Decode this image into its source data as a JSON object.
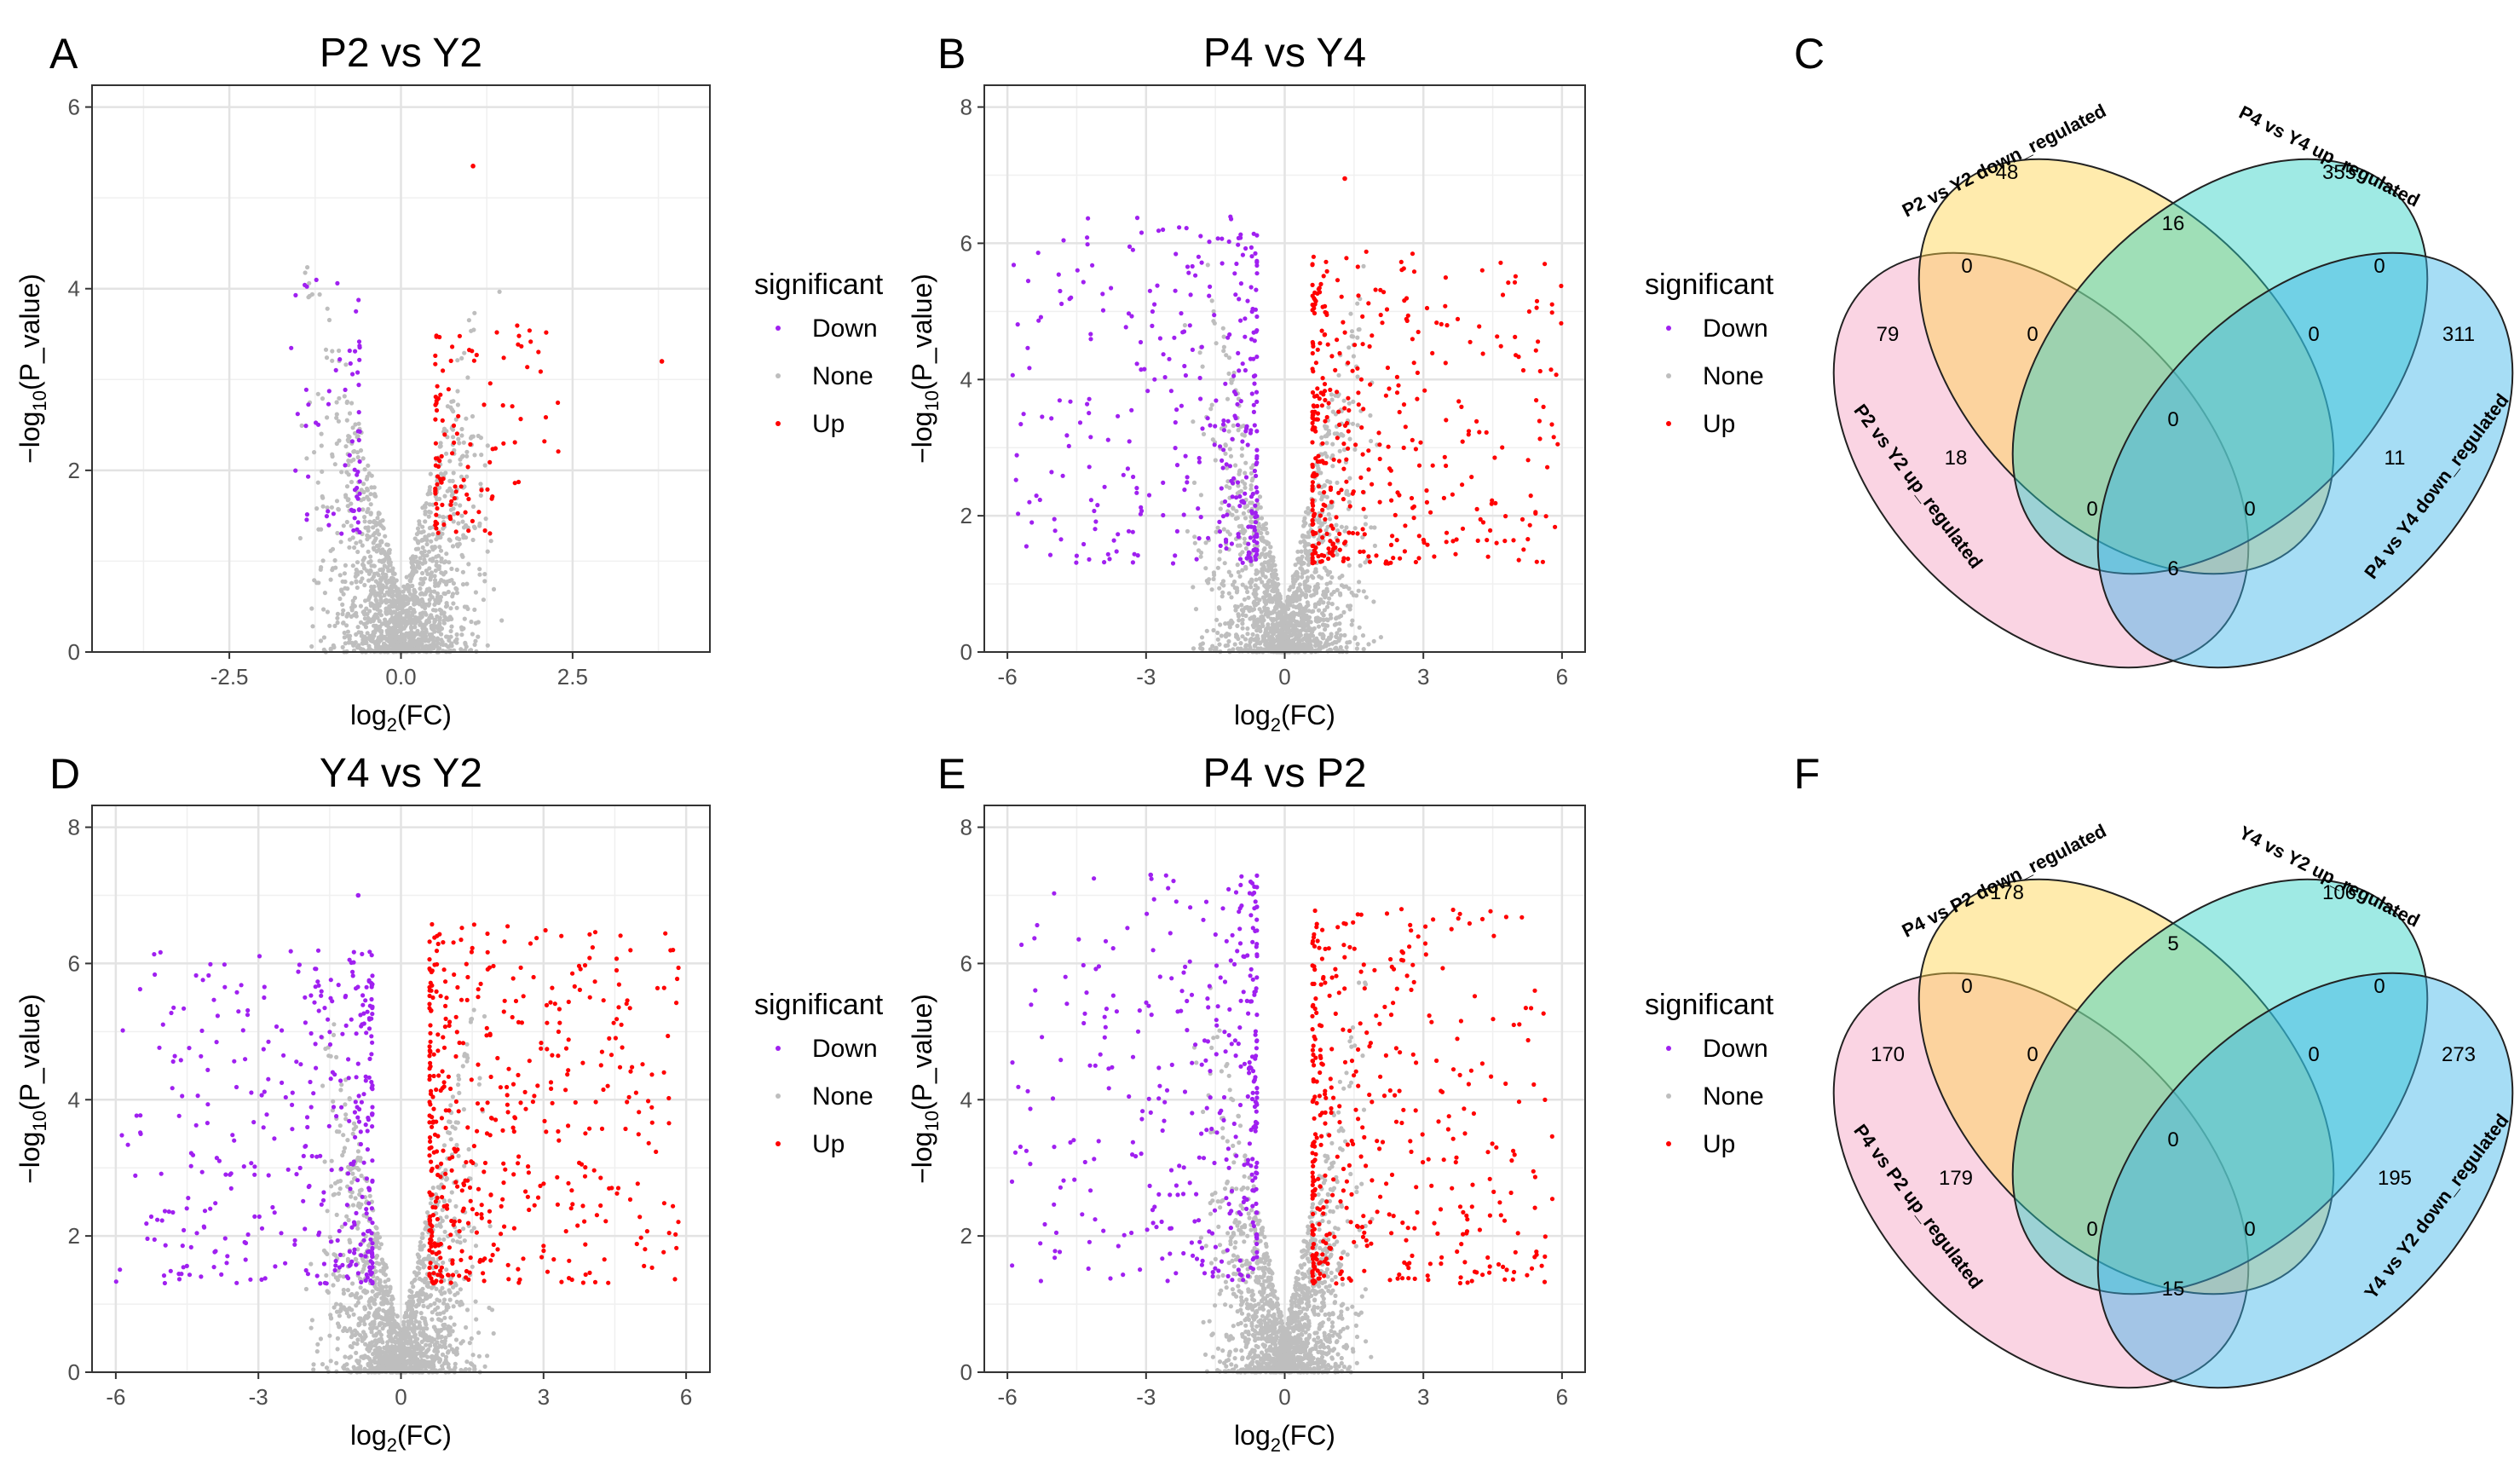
{
  "figure": {
    "panels": [
      "A",
      "B",
      "C",
      "D",
      "E",
      "F"
    ]
  },
  "chart_data": [
    {
      "id": "A",
      "type": "scatter",
      "title": "P2 vs Y2",
      "xlabel_prefix": "log",
      "xlabel_sub": "2",
      "xlabel_suffix": "(FC)",
      "ylabel_prefix": "−log",
      "ylabel_sub": "10",
      "ylabel_suffix": "(P_value)",
      "xlim": [
        -4.5,
        4.5
      ],
      "ylim": [
        0,
        6
      ],
      "xticks": [
        -2.5,
        0,
        2.5
      ],
      "xtick_labels": [
        "-2.5",
        "0.0",
        "2.5"
      ],
      "yticks": [
        0,
        2,
        4,
        6
      ],
      "ytick_labels": [
        "0",
        "2",
        "4",
        "6"
      ],
      "legend": {
        "title": "significant",
        "entries": [
          "Down",
          "None",
          "Up"
        ]
      },
      "colors": {
        "Down": "#a020f0",
        "None": "#bebebe",
        "Up": "#ff0000"
      },
      "series": [
        {
          "name": "None",
          "n": 1500,
          "xmin": -1.6,
          "xmax": 1.6,
          "ymax": 4.3,
          "scale": 0.85
        },
        {
          "name": "Down",
          "n": 65,
          "xmin": -1.6,
          "xmax": -0.6,
          "ymin": 1.3,
          "ymax": 4.2
        },
        {
          "name": "Up",
          "n": 110,
          "xmin": 0.5,
          "xmax": 2.3,
          "ymin": 1.3,
          "ymax": 3.6
        }
      ],
      "annotations": [
        {
          "x": 1.05,
          "y": 5.35,
          "series": "Up"
        },
        {
          "x": 3.8,
          "y": 3.2,
          "series": "Up"
        }
      ]
    },
    {
      "id": "B",
      "type": "scatter",
      "title": "P4 vs Y4",
      "xlabel_prefix": "log",
      "xlabel_sub": "2",
      "xlabel_suffix": "(FC)",
      "ylabel_prefix": "−log",
      "ylabel_sub": "10",
      "ylabel_suffix": "(P_value)",
      "xlim": [
        -6.5,
        6.5
      ],
      "ylim": [
        0,
        8
      ],
      "xticks": [
        -6,
        -3,
        0,
        3,
        6
      ],
      "xtick_labels": [
        "-6",
        "-3",
        "0",
        "3",
        "6"
      ],
      "yticks": [
        0,
        2,
        4,
        6,
        8
      ],
      "ytick_labels": [
        "0",
        "2",
        "4",
        "6",
        "8"
      ],
      "legend": {
        "title": "significant",
        "entries": [
          "Down",
          "None",
          "Up"
        ]
      },
      "colors": {
        "Down": "#a020f0",
        "None": "#bebebe",
        "Up": "#ff0000"
      },
      "series": [
        {
          "name": "None",
          "n": 1500,
          "xmin": -2.2,
          "xmax": 2.2,
          "ymax": 5.8,
          "scale": 1.2
        },
        {
          "name": "Down",
          "n": 330,
          "xmin": -6.0,
          "xmax": -0.6,
          "ymin": 1.3,
          "ymax": 6.4
        },
        {
          "name": "Up",
          "n": 400,
          "xmin": 0.6,
          "xmax": 6.0,
          "ymin": 1.3,
          "ymax": 5.9
        }
      ],
      "annotations": [
        {
          "x": 1.3,
          "y": 6.95,
          "series": "Up"
        }
      ]
    },
    {
      "id": "D",
      "type": "scatter",
      "title": "Y4 vs Y2",
      "xlabel_prefix": "log",
      "xlabel_sub": "2",
      "xlabel_suffix": "(FC)",
      "ylabel_prefix": "−log",
      "ylabel_sub": "10",
      "ylabel_suffix": "(P_value)",
      "xlim": [
        -6.5,
        6.5
      ],
      "ylim": [
        0,
        8
      ],
      "xticks": [
        -6,
        -3,
        0,
        3,
        6
      ],
      "xtick_labels": [
        "-6",
        "-3",
        "0",
        "3",
        "6"
      ],
      "yticks": [
        0,
        2,
        4,
        6,
        8
      ],
      "ytick_labels": [
        "0",
        "2",
        "4",
        "6",
        "8"
      ],
      "legend": {
        "title": "significant",
        "entries": [
          "Down",
          "None",
          "Up"
        ]
      },
      "colors": {
        "Down": "#a020f0",
        "None": "#bebebe",
        "Up": "#ff0000"
      },
      "series": [
        {
          "name": "None",
          "n": 1500,
          "xmin": -2.0,
          "xmax": 2.0,
          "ymax": 5.5,
          "scale": 1.1
        },
        {
          "name": "Down",
          "n": 380,
          "xmin": -6.0,
          "xmax": -0.6,
          "ymin": 1.3,
          "ymax": 6.2
        },
        {
          "name": "Up",
          "n": 480,
          "xmin": 0.6,
          "xmax": 5.9,
          "ymin": 1.3,
          "ymax": 6.6
        }
      ],
      "annotations": [
        {
          "x": -0.9,
          "y": 7.0,
          "series": "Down"
        }
      ]
    },
    {
      "id": "E",
      "type": "scatter",
      "title": "P4 vs P2",
      "xlabel_prefix": "log",
      "xlabel_sub": "2",
      "xlabel_suffix": "(FC)",
      "ylabel_prefix": "−log",
      "ylabel_sub": "10",
      "ylabel_suffix": "(P_value)",
      "xlim": [
        -6.5,
        6.5
      ],
      "ylim": [
        0,
        8
      ],
      "xticks": [
        -6,
        -3,
        0,
        3,
        6
      ],
      "xtick_labels": [
        "-6",
        "-3",
        "0",
        "3",
        "6"
      ],
      "yticks": [
        0,
        2,
        4,
        6,
        8
      ],
      "ytick_labels": [
        "0",
        "2",
        "4",
        "6",
        "8"
      ],
      "legend": {
        "title": "significant",
        "entries": [
          "Down",
          "None",
          "Up"
        ]
      },
      "colors": {
        "Down": "#a020f0",
        "None": "#bebebe",
        "Up": "#ff0000"
      },
      "series": [
        {
          "name": "None",
          "n": 1500,
          "xmin": -2.0,
          "xmax": 2.0,
          "ymax": 5.8,
          "scale": 1.1
        },
        {
          "name": "Down",
          "n": 360,
          "xmin": -6.0,
          "xmax": -0.6,
          "ymin": 1.3,
          "ymax": 7.3
        },
        {
          "name": "Up",
          "n": 420,
          "xmin": 0.6,
          "xmax": 5.8,
          "ymin": 1.3,
          "ymax": 6.8
        }
      ],
      "annotations": [
        {
          "x": -2.9,
          "y": 7.3,
          "series": "Down"
        }
      ]
    },
    {
      "id": "C",
      "type": "venn",
      "sets": [
        "P2 vs Y2 up_regulated",
        "P2 vs Y2 down_regulated",
        "P4 vs Y4 up_regulated",
        "P4 vs Y4 down_regulated"
      ],
      "set_colors": [
        "#f5a0c0",
        "#ffd24a",
        "#2ad1c4",
        "#3ab4e8"
      ],
      "regions": {
        "a_only": "79",
        "b_only": "48",
        "c_only": "355",
        "d_only": "311",
        "ab": "0",
        "bc": "16",
        "cd": "0",
        "ac": "18",
        "bd": "11",
        "ad": "6",
        "abc": "0",
        "bcd": "0",
        "acd": "0",
        "abd": "0",
        "abcd": "0"
      }
    },
    {
      "id": "F",
      "type": "venn",
      "sets": [
        "P4 vs P2 up_regulated",
        "P4 vs P2 down_regulated",
        "Y4 vs Y2 up_regulated",
        "Y4 vs Y2 down_regulated"
      ],
      "set_colors": [
        "#f5a0c0",
        "#ffd24a",
        "#2ad1c4",
        "#3ab4e8"
      ],
      "regions": {
        "a_only": "170",
        "b_only": "178",
        "c_only": "106",
        "d_only": "273",
        "ab": "0",
        "bc": "5",
        "cd": "0",
        "ac": "179",
        "bd": "195",
        "ad": "15",
        "abc": "0",
        "bcd": "0",
        "acd": "0",
        "abd": "0",
        "abcd": "0"
      }
    }
  ]
}
